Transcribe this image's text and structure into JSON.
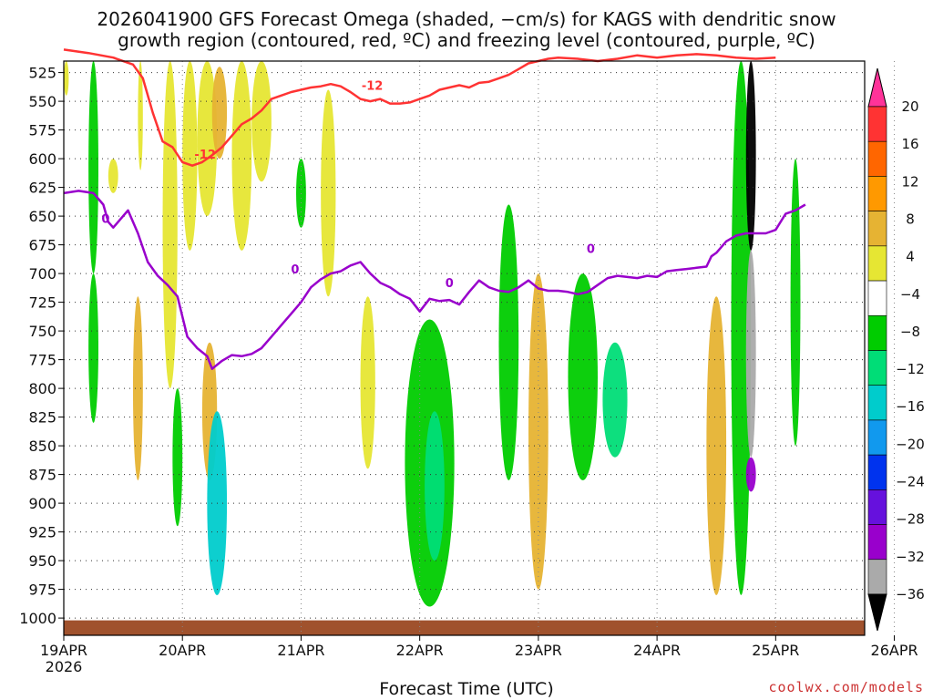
{
  "header": {
    "title_line1": "2026041900 GFS Forecast Omega (shaded, −cm/s) for KAGS with dendritic snow",
    "title_line2": "growth region (contoured, red, ºC) and freezing level (contoured, purple, ºC)"
  },
  "footer": {
    "xlabel": "Forecast Time (UTC)",
    "credit": "coolwx.com/models"
  },
  "chart_data": {
    "type": "heatmap",
    "title": "2026041900 GFS Forecast Omega (shaded, −cm/s) for KAGS with dendritic snow growth region (contoured, red, ºC) and freezing level (contoured, purple, ºC)",
    "xlabel": "Forecast Time (UTC)",
    "ylabel": "",
    "x_ticks": [
      "19APR\n2026",
      "20APR",
      "21APR",
      "22APR",
      "23APR",
      "24APR",
      "25APR",
      "26APR"
    ],
    "x_range_hours": [
      0,
      162
    ],
    "y_ticks": [
      525,
      550,
      575,
      600,
      625,
      650,
      675,
      700,
      725,
      750,
      775,
      800,
      825,
      850,
      875,
      900,
      925,
      950,
      975,
      1000
    ],
    "y_range_hpa": [
      515,
      1015
    ],
    "grid": true,
    "colorbar": {
      "labels": [
        "20",
        "16",
        "12",
        "8",
        "4",
        "−4",
        "−8",
        "−12",
        "−16",
        "−20",
        "−24",
        "−28",
        "−32",
        "−36"
      ],
      "colors": [
        "#ff3399",
        "#ff3333",
        "#ff6600",
        "#ff9900",
        "#e6b333",
        "#e6e633",
        "#ffffff",
        "#00cc00",
        "#00dd77",
        "#00cccc",
        "#1199ee",
        "#0033ee",
        "#6611dd",
        "#9900cc",
        "#aaaaaa",
        "#000000"
      ]
    },
    "contours": [
      {
        "color": "#ff3333",
        "level_label": "-12",
        "points": [
          [
            0,
            505
          ],
          [
            5,
            508
          ],
          [
            10,
            512
          ],
          [
            14,
            518
          ],
          [
            16,
            530
          ],
          [
            18,
            560
          ],
          [
            20,
            585
          ],
          [
            22,
            590
          ],
          [
            24,
            603
          ],
          [
            26,
            606
          ],
          [
            28,
            603
          ],
          [
            30,
            597
          ],
          [
            32,
            590
          ],
          [
            34,
            580
          ],
          [
            36,
            570
          ],
          [
            38,
            565
          ],
          [
            40,
            558
          ],
          [
            42,
            548
          ],
          [
            44,
            545
          ],
          [
            46,
            542
          ],
          [
            48,
            540
          ],
          [
            50,
            538
          ],
          [
            52,
            537
          ],
          [
            54,
            535
          ],
          [
            56,
            537
          ],
          [
            58,
            542
          ],
          [
            60,
            548
          ],
          [
            62,
            550
          ],
          [
            64,
            548
          ],
          [
            66,
            552
          ],
          [
            68,
            552
          ],
          [
            70,
            551
          ],
          [
            72,
            548
          ],
          [
            74,
            545
          ],
          [
            76,
            540
          ],
          [
            78,
            538
          ],
          [
            80,
            536
          ],
          [
            82,
            538
          ],
          [
            84,
            534
          ],
          [
            86,
            533
          ],
          [
            88,
            530
          ],
          [
            90,
            527
          ],
          [
            92,
            522
          ],
          [
            94,
            517
          ],
          [
            96,
            515
          ],
          [
            98,
            513
          ],
          [
            100,
            512
          ],
          [
            104,
            513
          ],
          [
            108,
            515
          ],
          [
            112,
            513
          ],
          [
            116,
            510
          ],
          [
            120,
            512
          ],
          [
            124,
            510
          ],
          [
            128,
            509
          ],
          [
            132,
            510
          ],
          [
            136,
            512
          ],
          [
            140,
            513
          ],
          [
            144,
            512
          ]
        ]
      },
      {
        "color": "#9900cc",
        "level_label": "0",
        "points": [
          [
            0,
            630
          ],
          [
            3,
            628
          ],
          [
            6,
            630
          ],
          [
            8,
            640
          ],
          [
            9,
            655
          ],
          [
            10,
            660
          ],
          [
            12,
            650
          ],
          [
            13,
            645
          ],
          [
            15,
            665
          ],
          [
            17,
            690
          ],
          [
            19,
            702
          ],
          [
            21,
            710
          ],
          [
            23,
            720
          ],
          [
            25,
            755
          ],
          [
            27,
            765
          ],
          [
            29,
            772
          ],
          [
            30,
            783
          ],
          [
            32,
            776
          ],
          [
            34,
            771
          ],
          [
            36,
            772
          ],
          [
            38,
            770
          ],
          [
            40,
            765
          ],
          [
            42,
            755
          ],
          [
            44,
            745
          ],
          [
            46,
            735
          ],
          [
            48,
            725
          ],
          [
            50,
            712
          ],
          [
            52,
            705
          ],
          [
            54,
            700
          ],
          [
            56,
            698
          ],
          [
            58,
            693
          ],
          [
            60,
            690
          ],
          [
            62,
            700
          ],
          [
            64,
            708
          ],
          [
            66,
            712
          ],
          [
            68,
            718
          ],
          [
            70,
            722
          ],
          [
            72,
            733
          ],
          [
            74,
            722
          ],
          [
            76,
            724
          ],
          [
            78,
            723
          ],
          [
            80,
            727
          ],
          [
            82,
            716
          ],
          [
            84,
            706
          ],
          [
            86,
            712
          ],
          [
            88,
            715
          ],
          [
            90,
            716
          ],
          [
            92,
            712
          ],
          [
            94,
            706
          ],
          [
            96,
            713
          ],
          [
            98,
            715
          ],
          [
            100,
            715
          ],
          [
            102,
            716
          ],
          [
            104,
            718
          ],
          [
            106,
            716
          ],
          [
            108,
            710
          ],
          [
            110,
            704
          ],
          [
            112,
            702
          ],
          [
            114,
            703
          ],
          [
            116,
            704
          ],
          [
            118,
            702
          ],
          [
            120,
            703
          ],
          [
            122,
            698
          ],
          [
            124,
            697
          ],
          [
            126,
            696
          ],
          [
            128,
            695
          ],
          [
            130,
            694
          ],
          [
            131,
            685
          ],
          [
            132,
            682
          ],
          [
            134,
            672
          ],
          [
            136,
            667
          ],
          [
            138,
            665
          ],
          [
            140,
            665
          ],
          [
            142,
            665
          ],
          [
            144,
            662
          ],
          [
            146,
            648
          ],
          [
            148,
            645
          ],
          [
            150,
            640
          ]
        ]
      }
    ],
    "omega_regions": [
      {
        "x": [
          0,
          1
        ],
        "p": [
          515,
          545
        ],
        "value": 4
      },
      {
        "x": [
          5,
          7
        ],
        "p": [
          515,
          700
        ],
        "value": -6
      },
      {
        "x": [
          5,
          7
        ],
        "p": [
          700,
          830
        ],
        "value": -6
      },
      {
        "x": [
          9,
          11
        ],
        "p": [
          600,
          630
        ],
        "value": 4
      },
      {
        "x": [
          15,
          16
        ],
        "p": [
          515,
          610
        ],
        "value": 4
      },
      {
        "x": [
          14,
          16
        ],
        "p": [
          720,
          880
        ],
        "value": 10
      },
      {
        "x": [
          20,
          23
        ],
        "p": [
          515,
          800
        ],
        "value": 6
      },
      {
        "x": [
          22,
          24
        ],
        "p": [
          800,
          920
        ],
        "value": -6
      },
      {
        "x": [
          24,
          27
        ],
        "p": [
          515,
          680
        ],
        "value": 4
      },
      {
        "x": [
          27,
          31
        ],
        "p": [
          515,
          650
        ],
        "value": 6
      },
      {
        "x": [
          30,
          33
        ],
        "p": [
          520,
          600
        ],
        "value": 10
      },
      {
        "x": [
          28,
          31
        ],
        "p": [
          760,
          880
        ],
        "value": 8
      },
      {
        "x": [
          29,
          33
        ],
        "p": [
          820,
          980
        ],
        "value": -14
      },
      {
        "x": [
          34,
          38
        ],
        "p": [
          515,
          680
        ],
        "value": 6
      },
      {
        "x": [
          38,
          42
        ],
        "p": [
          515,
          620
        ],
        "value": 4
      },
      {
        "x": [
          47,
          49
        ],
        "p": [
          600,
          660
        ],
        "value": -6
      },
      {
        "x": [
          52,
          55
        ],
        "p": [
          540,
          720
        ],
        "value": 4
      },
      {
        "x": [
          60,
          63
        ],
        "p": [
          720,
          870
        ],
        "value": 6
      },
      {
        "x": [
          69,
          79
        ],
        "p": [
          740,
          990
        ],
        "value": -6
      },
      {
        "x": [
          73,
          77
        ],
        "p": [
          820,
          950
        ],
        "value": -10
      },
      {
        "x": [
          88,
          92
        ],
        "p": [
          640,
          880
        ],
        "value": -6
      },
      {
        "x": [
          94,
          98
        ],
        "p": [
          700,
          975
        ],
        "value": 8
      },
      {
        "x": [
          102,
          108
        ],
        "p": [
          700,
          880
        ],
        "value": -6
      },
      {
        "x": [
          109,
          114
        ],
        "p": [
          760,
          860
        ],
        "value": -10
      },
      {
        "x": [
          130,
          134
        ],
        "p": [
          720,
          980
        ],
        "value": 10
      },
      {
        "x": [
          135,
          139
        ],
        "p": [
          515,
          980
        ],
        "value": -6
      },
      {
        "x": [
          138,
          140
        ],
        "p": [
          515,
          680
        ],
        "value": -36
      },
      {
        "x": [
          138,
          140
        ],
        "p": [
          680,
          860
        ],
        "value": -32
      },
      {
        "x": [
          138,
          140
        ],
        "p": [
          860,
          890
        ],
        "value": -28
      },
      {
        "x": [
          147,
          149
        ],
        "p": [
          600,
          850
        ],
        "value": -6
      }
    ]
  }
}
